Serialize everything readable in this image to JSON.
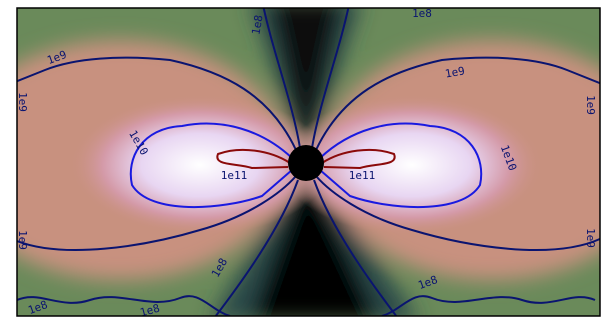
{
  "chart_data": {
    "type": "contour",
    "levels": [
      {
        "value": 100000000,
        "label": "1e8",
        "color": "#0a1470"
      },
      {
        "value": 1000000000,
        "label": "1e9",
        "color": "#0a1470"
      },
      {
        "value": 10000000000,
        "label": "1e10",
        "color": "#1a1ae0"
      },
      {
        "value": 100000000000,
        "label": "1e11",
        "color": "#8b0a0a"
      }
    ]
  }
}
